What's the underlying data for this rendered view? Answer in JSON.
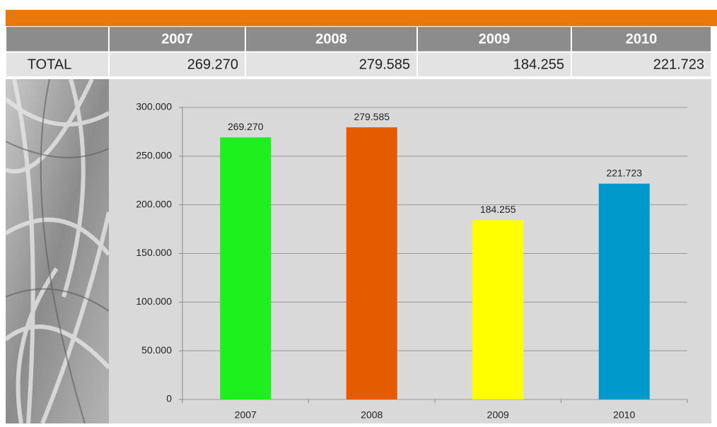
{
  "table": {
    "columns": [
      "2007",
      "2008",
      "2009",
      "2010"
    ],
    "rows": [
      [
        "TOTAL",
        "269.270",
        "279.585",
        "184.255",
        "221.723"
      ]
    ]
  },
  "chart_data": {
    "type": "bar",
    "categories": [
      "2007",
      "2008",
      "2009",
      "2010"
    ],
    "values": [
      269270,
      279585,
      184255,
      221723
    ],
    "value_labels": [
      "269.270",
      "279.585",
      "184.255",
      "221.723"
    ],
    "colors": [
      "#1ef01e",
      "#e55c00",
      "#ffff00",
      "#0099cc"
    ],
    "ylim": [
      0,
      300000
    ],
    "yticks": [
      0,
      {
        "value": 50000,
        "label": "50.000"
      },
      {
        "value": 100000,
        "label": "100.000"
      },
      {
        "value": 150000,
        "label": "150.000"
      },
      {
        "value": 200000,
        "label": "200.000"
      },
      {
        "value": 250000,
        "label": "250.000"
      },
      {
        "value": 300000,
        "label": "300.000"
      }
    ],
    "grid": true
  }
}
